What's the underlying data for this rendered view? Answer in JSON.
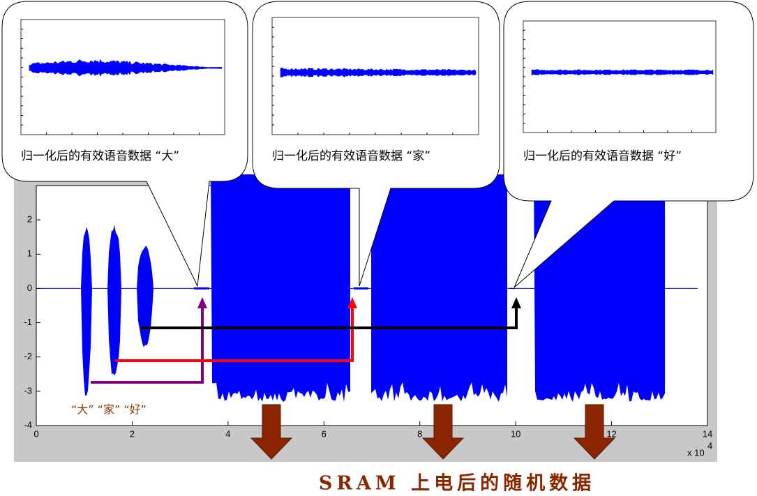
{
  "chart_data": {
    "type": "waveform",
    "xlim": [
      0,
      14
    ],
    "xticks": [
      0,
      2,
      4,
      6,
      8,
      10,
      12,
      14
    ],
    "ylim": [
      -4,
      3
    ],
    "yticks": [
      -4,
      -3,
      -2,
      -1,
      0,
      1,
      2
    ],
    "x_multiplier": "x 10",
    "x_exponent": "4",
    "color": "#0000ff",
    "word_label": "“大” “家” “好”",
    "annotations": [
      "归一化后的有效语音数据 “大”",
      "归一化后的有效语音数据 “家”",
      "归一化后的有效语音数据 “好”"
    ],
    "caption": "SRAM  上电后的随机数据"
  }
}
